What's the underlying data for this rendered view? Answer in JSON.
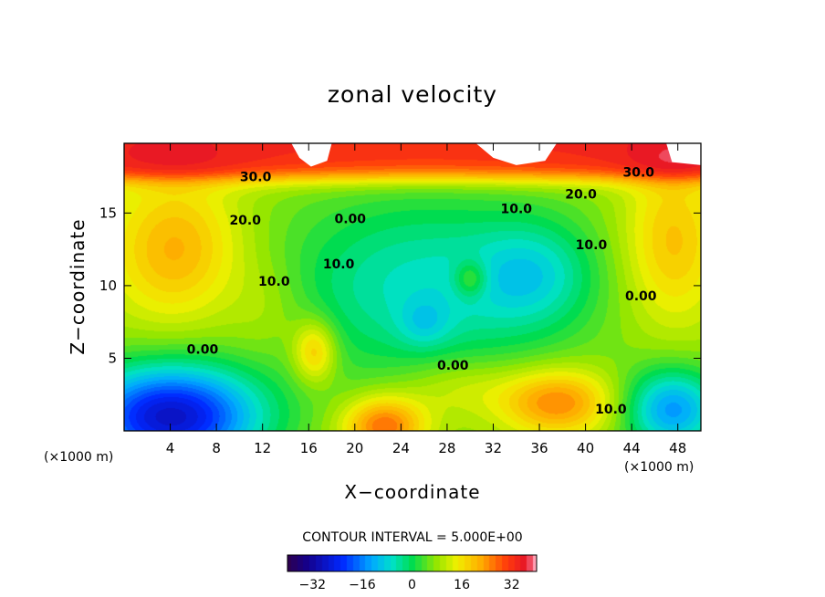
{
  "chart_data": {
    "type": "heatmap",
    "title": "zonal velocity",
    "xlabel": "X−coordinate",
    "ylabel": "Z−coordinate",
    "x_unit_label": "(×1000 m)",
    "x_unit_label_right": "(×1000 m)",
    "xlim": [
      0,
      50
    ],
    "ylim": [
      0,
      19.8
    ],
    "x_ticks": [
      4,
      8,
      12,
      16,
      20,
      24,
      28,
      32,
      36,
      40,
      44,
      48
    ],
    "x_tick_labels": [
      "4",
      "8",
      "12",
      "16",
      "20",
      "24",
      "28",
      "32",
      "36",
      "40",
      "44",
      "48"
    ],
    "y_ticks": [
      5,
      10,
      15
    ],
    "y_tick_labels": [
      "5",
      "10",
      "15"
    ],
    "contour_interval_text": "CONTOUR INTERVAL = 5.000E+00",
    "colorbar": {
      "range": [
        -40,
        40
      ],
      "tick_values": [
        -32,
        -16,
        0,
        16,
        32
      ],
      "tick_labels": [
        "−32",
        "−16",
        "0",
        "16",
        "32"
      ]
    },
    "contour_labels": [
      {
        "text": "30.0",
        "x": 11.4,
        "y": 17.2
      },
      {
        "text": "30.0",
        "x": 44.6,
        "y": 17.5
      },
      {
        "text": "20.0",
        "x": 10.5,
        "y": 14.2
      },
      {
        "text": "20.0",
        "x": 39.6,
        "y": 16.0
      },
      {
        "text": "10.0",
        "x": 34.0,
        "y": 15.0
      },
      {
        "text": "10.0",
        "x": 13.0,
        "y": 10.0
      },
      {
        "text": "10.0",
        "x": 18.6,
        "y": 11.2
      },
      {
        "text": "10.0",
        "x": 40.5,
        "y": 12.5
      },
      {
        "text": "10.0",
        "x": 42.2,
        "y": 1.2
      },
      {
        "text": "0.00",
        "x": 19.6,
        "y": 14.3
      },
      {
        "text": "0.00",
        "x": 6.8,
        "y": 5.3
      },
      {
        "text": "0.00",
        "x": 28.5,
        "y": 4.2
      },
      {
        "text": "0.00",
        "x": 44.8,
        "y": 9.0
      }
    ],
    "white_regions": [
      [
        [
          14.5,
          19.8
        ],
        [
          15.2,
          18.8
        ],
        [
          16.2,
          18.2
        ],
        [
          17.6,
          18.6
        ],
        [
          18.0,
          19.8
        ]
      ],
      [
        [
          30.5,
          19.8
        ],
        [
          32.0,
          18.8
        ],
        [
          34.0,
          18.3
        ],
        [
          36.5,
          18.6
        ],
        [
          37.5,
          19.8
        ]
      ],
      [
        [
          47.0,
          19.8
        ],
        [
          47.5,
          18.5
        ],
        [
          50.0,
          18.3
        ],
        [
          50.0,
          19.8
        ]
      ]
    ],
    "field_components": [
      {
        "kind": "base",
        "value": 8
      },
      {
        "kind": "band_top",
        "z": 17.4,
        "value": 34
      },
      {
        "kind": "gauss",
        "x": 4.5,
        "z": 12.5,
        "sx": 4.0,
        "sz": 3.5,
        "amp": 14
      },
      {
        "kind": "gauss",
        "x": 47.5,
        "z": 13.0,
        "sx": 3.0,
        "sz": 4.0,
        "amp": 12
      },
      {
        "kind": "gauss",
        "x": 26,
        "z": 10,
        "sx": 9,
        "sz": 4.5,
        "amp": -14
      },
      {
        "kind": "gauss",
        "x": 35.5,
        "z": 10.8,
        "sx": 3.5,
        "sz": 2.5,
        "amp": -10
      },
      {
        "kind": "gauss",
        "x": 26,
        "z": 7.4,
        "sx": 1.6,
        "sz": 1.2,
        "amp": -6
      },
      {
        "kind": "gauss",
        "x": 30,
        "z": 10.5,
        "sx": 1.0,
        "sz": 0.9,
        "amp": 10
      },
      {
        "kind": "gauss",
        "x": 4,
        "z": 1.0,
        "sx": 5.5,
        "sz": 2.5,
        "amp": -36
      },
      {
        "kind": "gauss",
        "x": 22.5,
        "z": 0.4,
        "sx": 2.5,
        "sz": 1.4,
        "amp": 20
      },
      {
        "kind": "gauss",
        "x": 37.5,
        "z": 2.0,
        "sx": 3.5,
        "sz": 1.6,
        "amp": 18
      },
      {
        "kind": "gauss",
        "x": 47.5,
        "z": 1.5,
        "sx": 3.0,
        "sz": 2.0,
        "amp": -22
      },
      {
        "kind": "gauss",
        "x": 16.5,
        "z": 5.5,
        "sx": 1.3,
        "sz": 1.5,
        "amp": 14
      },
      {
        "kind": "gauss",
        "x": 29,
        "z": 3.0,
        "sx": 3.5,
        "sz": 1.5,
        "amp": 6
      },
      {
        "kind": "gauss",
        "x": 12.5,
        "z": 8.5,
        "sx": 2.5,
        "sz": 2.5,
        "amp": 4
      }
    ]
  }
}
